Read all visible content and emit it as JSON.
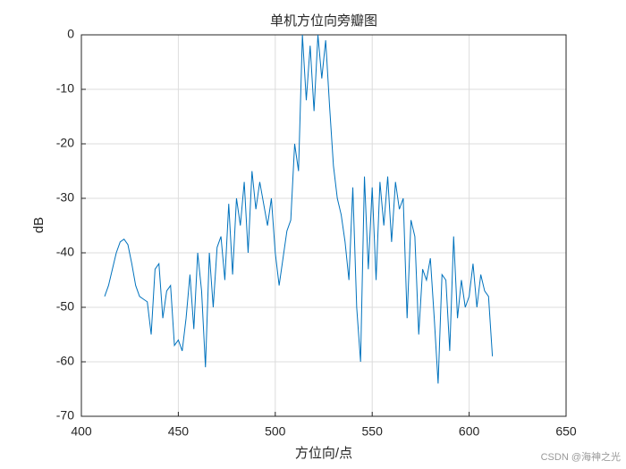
{
  "chart_data": {
    "type": "line",
    "title": "单机方位向旁瓣图",
    "xlabel": "方位向/点",
    "ylabel": "dB",
    "watermark": "CSDN @海神之光",
    "x": [
      412,
      414,
      416,
      418,
      420,
      422,
      424,
      426,
      428,
      430,
      432,
      434,
      436,
      438,
      440,
      442,
      444,
      446,
      448,
      450,
      452,
      454,
      456,
      458,
      460,
      462,
      464,
      466,
      468,
      470,
      472,
      474,
      476,
      478,
      480,
      482,
      484,
      486,
      488,
      490,
      492,
      494,
      496,
      498,
      500,
      502,
      504,
      506,
      508,
      510,
      512,
      514,
      516,
      518,
      520,
      522,
      524,
      526,
      528,
      530,
      532,
      534,
      536,
      538,
      540,
      542,
      544,
      546,
      548,
      550,
      552,
      554,
      556,
      558,
      560,
      562,
      564,
      566,
      568,
      570,
      572,
      574,
      576,
      578,
      580,
      582,
      584,
      586,
      588,
      590,
      592,
      594,
      596,
      598,
      600,
      602,
      604,
      606,
      608,
      610,
      612
    ],
    "values": [
      -48,
      -46,
      -43,
      -40,
      -38,
      -37.5,
      -38.5,
      -42,
      -46,
      -48,
      -48.5,
      -49,
      -55,
      -43,
      -42,
      -52,
      -47,
      -46,
      -57,
      -56,
      -58,
      -52,
      -44,
      -54,
      -40,
      -47,
      -61,
      -40,
      -50,
      -39,
      -37,
      -45,
      -31,
      -44,
      -30,
      -35,
      -27,
      -40,
      -25,
      -32,
      -27,
      -31,
      -35,
      -30,
      -40,
      -46,
      -41,
      -36,
      -34,
      -20,
      -25,
      0,
      -12,
      -2,
      -14,
      0,
      -8,
      -1,
      -13,
      -24,
      -30,
      -33,
      -38,
      -45,
      -28,
      -50,
      -60,
      -26,
      -43,
      -28,
      -45,
      -27,
      -35,
      -26,
      -38,
      -27,
      -32,
      -30,
      -52,
      -34,
      -37,
      -55,
      -43,
      -45,
      -41,
      -52,
      -64,
      -44,
      -45,
      -58,
      -37,
      -52,
      -45,
      -50,
      -48,
      -42,
      -50,
      -44,
      -47,
      -48,
      -59
    ],
    "color": "#0072bd",
    "xlim": [
      400,
      650
    ],
    "xticks": [
      400,
      450,
      500,
      550,
      600,
      650
    ],
    "ylim": [
      -70,
      0
    ],
    "yticks": [
      -70,
      -60,
      -50,
      -40,
      -30,
      -20,
      -10,
      0
    ],
    "grid": true
  }
}
